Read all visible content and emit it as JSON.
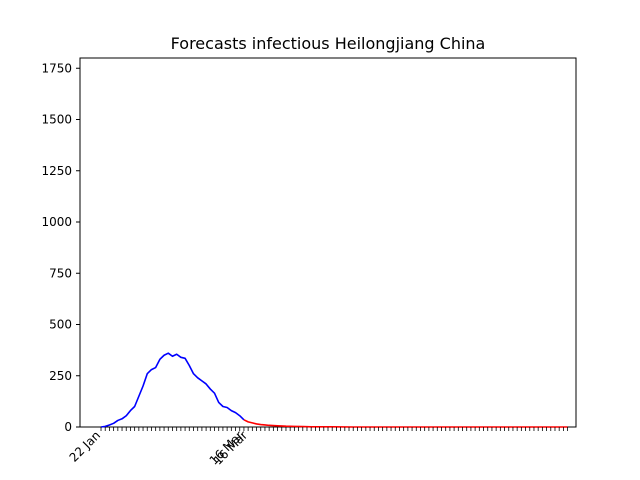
{
  "chart_data": {
    "type": "line",
    "title": "Forecasts infectious Heilongjiang China",
    "xlabel": "",
    "ylabel": "",
    "ylim": [
      0,
      1800
    ],
    "yticks": [
      0,
      250,
      500,
      750,
      1000,
      1250,
      1500,
      1750
    ],
    "x_day_range": [
      -5,
      113
    ],
    "x_tick_start": 0,
    "x_tick_end": 111,
    "x_labels": [
      {
        "day": 0,
        "label": "22 Jan"
      },
      {
        "day": 34,
        "label": "16 Mar"
      },
      {
        "day": 35,
        "label": "16 Mar"
      }
    ],
    "grid": false,
    "series": [
      {
        "color": "#0000ff",
        "x": [
          0,
          1,
          2,
          3,
          4,
          5,
          6,
          7,
          8,
          9,
          10,
          11,
          12,
          13,
          14,
          15,
          16,
          17,
          18,
          19,
          20,
          21,
          22,
          23,
          24,
          25,
          26,
          27,
          28,
          29,
          30,
          31,
          32,
          33,
          34
        ],
        "values": [
          0,
          3,
          10,
          18,
          32,
          40,
          55,
          80,
          100,
          150,
          200,
          260,
          280,
          290,
          330,
          350,
          360,
          345,
          355,
          340,
          335,
          300,
          260,
          240,
          225,
          210,
          185,
          165,
          120,
          100,
          95,
          80,
          70,
          55,
          35
        ]
      },
      {
        "color": "#ff0000",
        "x": [
          34,
          35,
          36,
          37,
          38,
          39,
          40,
          42,
          44,
          46,
          48,
          50,
          55,
          60,
          70,
          80,
          90,
          100,
          111
        ],
        "values": [
          35,
          25,
          20,
          15,
          12,
          10,
          8,
          6,
          4,
          3,
          2,
          1,
          1,
          0,
          0,
          0,
          0,
          0,
          0
        ]
      }
    ]
  }
}
